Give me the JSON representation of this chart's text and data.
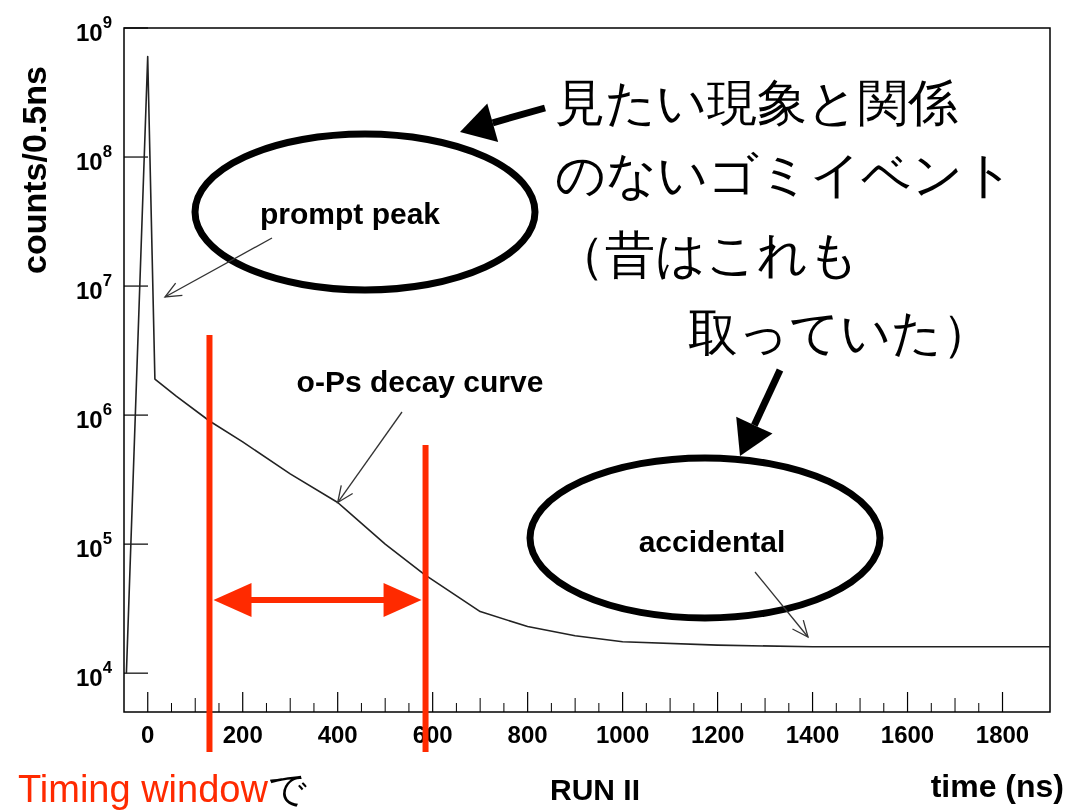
{
  "chart_data": {
    "type": "line",
    "xlabel": "time (ns)",
    "ylabel": "counts/0.5ns",
    "x": [
      -45,
      0,
      15,
      60,
      130,
      200,
      300,
      400,
      500,
      583,
      700,
      800,
      900,
      1000,
      1200,
      1400,
      1600,
      1900
    ],
    "series": [
      {
        "color": "#222222",
        "values": [
          10000,
          600000000,
          1900000,
          1400000,
          900000,
          620000,
          350000,
          210000,
          100000,
          58000,
          30000,
          23000,
          19500,
          17500,
          16500,
          16000,
          16000,
          16000
        ]
      }
    ],
    "xlim": [
      -50,
      1900
    ],
    "ylim": [
      5000,
      1000000000
    ],
    "xticks": [
      0,
      200,
      400,
      600,
      800,
      1000,
      1200,
      1400,
      1600,
      1800
    ],
    "yticks": [
      {
        "value": 10000,
        "label": "10$^{4}$"
      },
      {
        "value": 100000,
        "label": "10$^{5}$"
      },
      {
        "value": 1000000,
        "label": "10$^{6}$"
      },
      {
        "value": 10000000,
        "label": "10$^{7}$"
      },
      {
        "value": 100000000,
        "label": "10$^{8}$"
      },
      {
        "value": 1000000000,
        "label": "10$^{9}$"
      }
    ],
    "log": "y",
    "grid": false,
    "ref_lines": [
      {
        "axis": "x",
        "value": 130,
        "color": "#ff2a00"
      },
      {
        "axis": "x",
        "value": 585,
        "color": "#ff2a00"
      }
    ],
    "annotations": [
      "見たい現象と関係のないゴミイベント（昔はこれも取っていた）",
      "prompt peak",
      {
        "text": "o-Ps decay curve",
        "x": 400,
        "y": 210000
      },
      "accidental",
      "RUN II",
      "Timing windowで"
    ]
  }
}
